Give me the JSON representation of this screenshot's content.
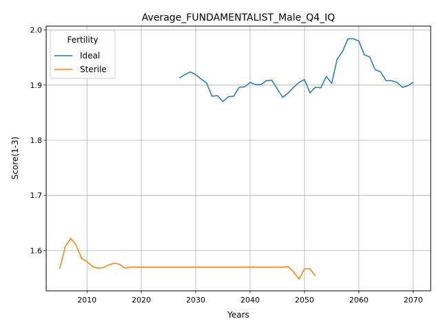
{
  "chart_data": {
    "type": "line",
    "title": "Average_FUNDAMENTALIST_Male_Q4_IQ",
    "xlabel": "Years",
    "ylabel": "Score(1-3)",
    "xlim": [
      2002.5,
      2073.2
    ],
    "ylim": [
      1.527,
      2.007
    ],
    "xticks": [
      2010,
      2020,
      2030,
      2040,
      2050,
      2060,
      2070
    ],
    "yticks": [
      1.6,
      1.7,
      1.8,
      1.9,
      2.0
    ],
    "grid": true,
    "legend": {
      "title": "Fertility",
      "position": "top-left"
    },
    "series": [
      {
        "name": "Ideal",
        "color": "#1f77b4",
        "x": [
          2027,
          2028,
          2029,
          2030,
          2031,
          2032,
          2033,
          2034,
          2035,
          2036,
          2037,
          2038,
          2039,
          2040,
          2041,
          2042,
          2043,
          2044,
          2045,
          2046,
          2047,
          2048,
          2049,
          2050,
          2051,
          2052,
          2053,
          2054,
          2055,
          2056,
          2057,
          2058,
          2059,
          2060,
          2061,
          2062,
          2063,
          2064,
          2065,
          2066,
          2067,
          2068,
          2069,
          2070
        ],
        "values": [
          1.913,
          1.919,
          1.924,
          1.919,
          1.911,
          1.904,
          1.88,
          1.881,
          1.87,
          1.879,
          1.88,
          1.896,
          1.897,
          1.905,
          1.901,
          1.901,
          1.908,
          1.909,
          1.893,
          1.878,
          1.886,
          1.896,
          1.905,
          1.91,
          1.886,
          1.896,
          1.895,
          1.916,
          1.903,
          1.947,
          1.961,
          1.984,
          1.984,
          1.98,
          1.955,
          1.951,
          1.928,
          1.924,
          1.908,
          1.908,
          1.905,
          1.896,
          1.899,
          1.905
        ]
      },
      {
        "name": "Sterile",
        "color": "#ff7f0e",
        "x": [
          2005,
          2006,
          2007,
          2008,
          2009,
          2010,
          2011,
          2012,
          2013,
          2014,
          2015,
          2016,
          2017,
          2018,
          2019,
          2020,
          2021,
          2022,
          2023,
          2024,
          2025,
          2026,
          2027,
          2028,
          2029,
          2030,
          2031,
          2032,
          2033,
          2034,
          2035,
          2036,
          2037,
          2038,
          2039,
          2040,
          2041,
          2042,
          2043,
          2044,
          2045,
          2046,
          2047,
          2048,
          2049,
          2050,
          2051,
          2052
        ],
        "values": [
          1.567,
          1.607,
          1.622,
          1.61,
          1.586,
          1.58,
          1.571,
          1.568,
          1.569,
          1.574,
          1.577,
          1.575,
          1.568,
          1.57,
          1.57,
          1.57,
          1.57,
          1.57,
          1.57,
          1.57,
          1.57,
          1.57,
          1.57,
          1.57,
          1.57,
          1.57,
          1.57,
          1.57,
          1.57,
          1.57,
          1.57,
          1.57,
          1.57,
          1.57,
          1.57,
          1.57,
          1.57,
          1.57,
          1.57,
          1.57,
          1.57,
          1.57,
          1.571,
          1.561,
          1.548,
          1.567,
          1.567,
          1.554
        ]
      }
    ]
  }
}
